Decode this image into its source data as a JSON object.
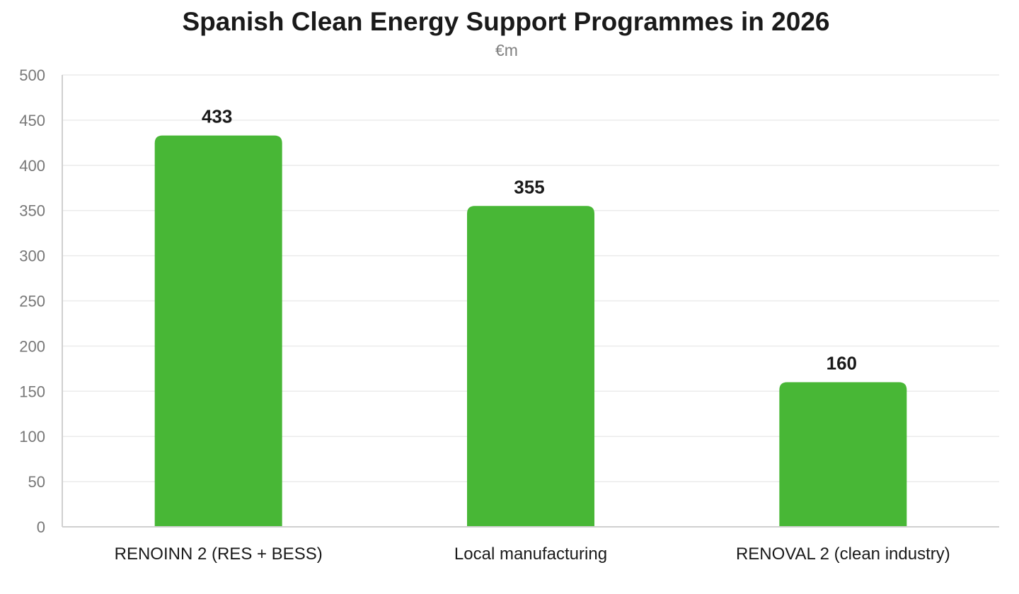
{
  "chart_data": {
    "type": "bar",
    "title": "Spanish Clean Energy Support Programmes in 2026",
    "subtitle": "€m",
    "categories": [
      "RENOINN 2 (RES + BESS)",
      "Local manufacturing",
      "RENOVAL 2 (clean industry)"
    ],
    "values": [
      433,
      355,
      160
    ],
    "ylim": [
      0,
      500
    ],
    "y_ticks": [
      0,
      50,
      100,
      150,
      200,
      250,
      300,
      350,
      400,
      450,
      500
    ],
    "grid": true,
    "bar_color": "#48b736",
    "data_labels": [
      "433",
      "355",
      "160"
    ]
  }
}
